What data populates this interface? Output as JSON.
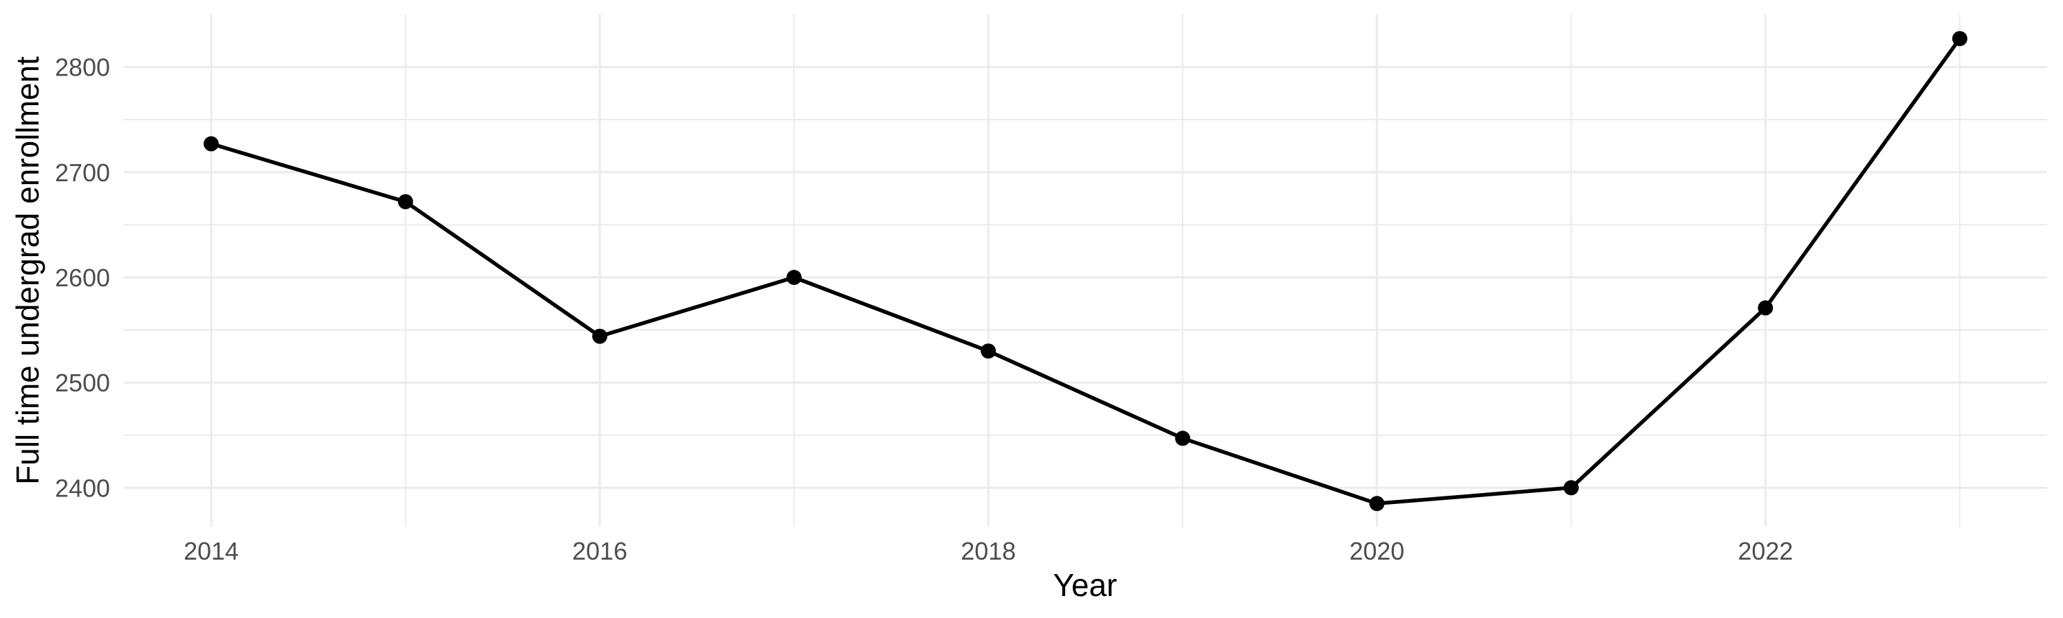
{
  "chart_data": {
    "type": "line",
    "title": "",
    "xlabel": "Year",
    "ylabel": "Full time undergrad enrollment",
    "x": [
      2014,
      2015,
      2016,
      2017,
      2018,
      2019,
      2020,
      2021,
      2022,
      2023
    ],
    "series": [
      {
        "name": "Full time undergrad enrollment",
        "values": [
          2727,
          2672,
          2544,
          2600,
          2530,
          2447,
          2385,
          2400,
          2571,
          2827
        ]
      }
    ],
    "x_ticks_major": [
      2014,
      2016,
      2018,
      2020,
      2022
    ],
    "x_ticks_minor": [
      2015,
      2017,
      2019,
      2021,
      2023
    ],
    "y_ticks_major": [
      2400,
      2500,
      2600,
      2700,
      2800
    ],
    "y_ticks_minor": [
      2450,
      2550,
      2650,
      2750
    ],
    "xlim": [
      2013.55,
      2023.45
    ],
    "ylim": [
      2363,
      2850
    ],
    "grid": "major+minor",
    "legend": false,
    "colors": {
      "line": "#000000",
      "point": "#000000",
      "grid": "#EBEBEB",
      "tick_label": "#4D4D4D",
      "axis_title": "#000000",
      "background": "#FFFFFF"
    }
  }
}
